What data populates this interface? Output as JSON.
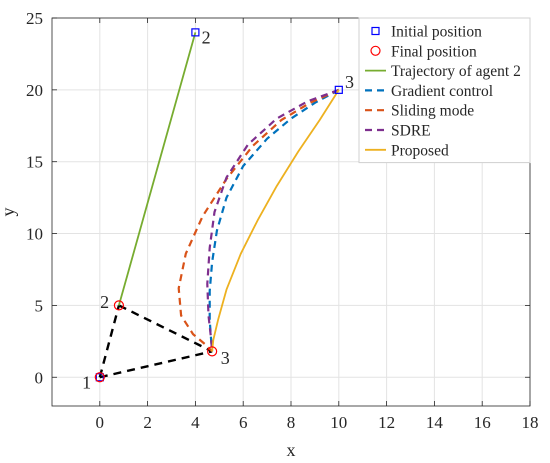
{
  "chart_data": {
    "type": "line",
    "xlabel": "x",
    "ylabel": "y",
    "xlim": [
      -2,
      18
    ],
    "ylim": [
      -2,
      25
    ],
    "xticks": [
      0,
      2,
      4,
      6,
      8,
      10,
      12,
      14,
      16,
      18
    ],
    "yticks": [
      0,
      5,
      10,
      15,
      20,
      25
    ],
    "grid": true,
    "legend_location": "top-right",
    "legend": [
      {
        "label": "Initial position",
        "kind": "square",
        "color": "#0000ff"
      },
      {
        "label": "Final position",
        "kind": "circle",
        "color": "#ff0000"
      },
      {
        "label": "Trajectory of agent 2",
        "kind": "solid",
        "color": "#77ac30"
      },
      {
        "label": "Gradient control",
        "kind": "dashed",
        "color": "#0072bd"
      },
      {
        "label": "Sliding mode",
        "kind": "dashed",
        "color": "#d95319"
      },
      {
        "label": "SDRE",
        "kind": "dashed",
        "color": "#7e2f8e"
      },
      {
        "label": "Proposed",
        "kind": "solid",
        "color": "#edb120"
      }
    ],
    "initial_positions": [
      {
        "agent": "1",
        "x": 0,
        "y": 0
      },
      {
        "agent": "2",
        "x": 4,
        "y": 24
      },
      {
        "agent": "3",
        "x": 10,
        "y": 20
      }
    ],
    "final_positions": [
      {
        "agent": "1",
        "x": 0,
        "y": 0
      },
      {
        "agent": "2",
        "x": 0.8,
        "y": 5
      },
      {
        "agent": "3",
        "x": 4.7,
        "y": 1.8
      }
    ],
    "point_labels": [
      {
        "text": "1",
        "x": -0.55,
        "y": -0.3
      },
      {
        "text": "2",
        "x": 4.45,
        "y": 23.7
      },
      {
        "text": "3",
        "x": 10.45,
        "y": 20.6
      },
      {
        "text": "2",
        "x": 0.2,
        "y": 5.3
      },
      {
        "text": "3",
        "x": 5.25,
        "y": 1.4
      }
    ],
    "formation_edges": [
      {
        "x": [
          0,
          0.8
        ],
        "y": [
          0,
          5
        ]
      },
      {
        "x": [
          0.8,
          4.7
        ],
        "y": [
          5,
          1.8
        ]
      },
      {
        "x": [
          0,
          4.7
        ],
        "y": [
          0,
          1.8
        ]
      }
    ],
    "formation_color": "#000000",
    "series": [
      {
        "name": "Trajectory of agent 2",
        "color": "#77ac30",
        "dash": false,
        "x": [
          0.8,
          4
        ],
        "y": [
          5,
          24
        ]
      },
      {
        "name": "Gradient control",
        "color": "#0072bd",
        "dash": true,
        "x": [
          10,
          9.0,
          8.0,
          7.0,
          6.0,
          5.3,
          4.9,
          4.7,
          4.6,
          4.6,
          4.65,
          4.7
        ],
        "y": [
          20,
          19.1,
          18.0,
          16.6,
          14.7,
          12.5,
          10.2,
          8.0,
          6.0,
          4.0,
          2.8,
          1.8
        ]
      },
      {
        "name": "Sliding mode",
        "color": "#d95319",
        "dash": true,
        "x": [
          10,
          8.8,
          7.6,
          6.4,
          5.3,
          4.3,
          3.6,
          3.3,
          3.4,
          3.9,
          4.4,
          4.7
        ],
        "y": [
          20,
          19.1,
          17.9,
          16.1,
          13.8,
          11.2,
          8.6,
          6.2,
          4.3,
          3.0,
          2.3,
          1.8
        ]
      },
      {
        "name": "SDRE",
        "color": "#7e2f8e",
        "dash": true,
        "x": [
          10,
          8.7,
          7.4,
          6.2,
          5.3,
          4.8,
          4.6,
          4.5,
          4.55,
          4.65,
          4.7
        ],
        "y": [
          20,
          19.2,
          18.0,
          16.2,
          13.9,
          11.5,
          9.0,
          6.5,
          4.3,
          2.8,
          1.8
        ]
      },
      {
        "name": "Proposed",
        "color": "#edb120",
        "dash": false,
        "x": [
          10,
          9.2,
          8.3,
          7.4,
          6.6,
          5.9,
          5.3,
          4.95,
          4.75,
          4.7
        ],
        "y": [
          20,
          17.9,
          15.7,
          13.3,
          10.9,
          8.6,
          6.1,
          4.0,
          2.6,
          1.8
        ]
      }
    ]
  }
}
